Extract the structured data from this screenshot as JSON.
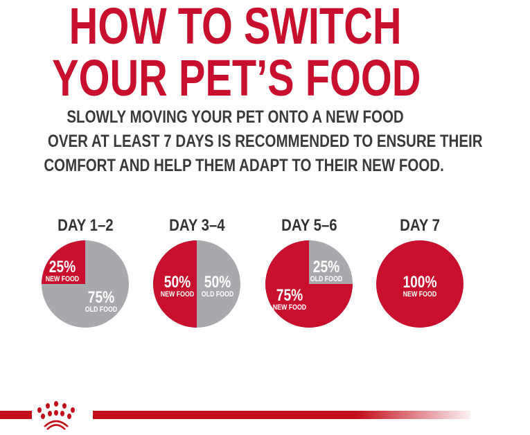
{
  "title_lines": [
    "HOW TO SWITCH",
    "YOUR PET’S FOOD"
  ],
  "subtitle_lines": [
    "SLOWLY MOVING YOUR PET ONTO A NEW FOOD",
    "OVER AT LEAST 7 DAYS IS RECOMMENDED TO ENSURE THEIR",
    "COMFORT AND HELP THEM ADAPT TO THEIR NEW FOOD."
  ],
  "colors": {
    "new_food": "#c8102e",
    "old_food": "#a7a9ac",
    "brand": "#c8102e"
  },
  "logo": {
    "name": "royal-canin-crown-logo"
  },
  "chart_data": [
    {
      "type": "pie",
      "title": "DAY 1–2",
      "slices": [
        {
          "label": "NEW FOOD",
          "value": 25,
          "text": "25%"
        },
        {
          "label": "OLD FOOD",
          "value": 75,
          "text": "75%"
        }
      ]
    },
    {
      "type": "pie",
      "title": "DAY 3–4",
      "slices": [
        {
          "label": "NEW FOOD",
          "value": 50,
          "text": "50%"
        },
        {
          "label": "OLD FOOD",
          "value": 50,
          "text": "50%"
        }
      ]
    },
    {
      "type": "pie",
      "title": "DAY 5–6",
      "slices": [
        {
          "label": "NEW FOOD",
          "value": 75,
          "text": "75%"
        },
        {
          "label": "OLD FOOD",
          "value": 25,
          "text": "25%"
        }
      ]
    },
    {
      "type": "pie",
      "title": "DAY 7",
      "slices": [
        {
          "label": "NEW FOOD",
          "value": 100,
          "text": "100%"
        }
      ]
    }
  ]
}
